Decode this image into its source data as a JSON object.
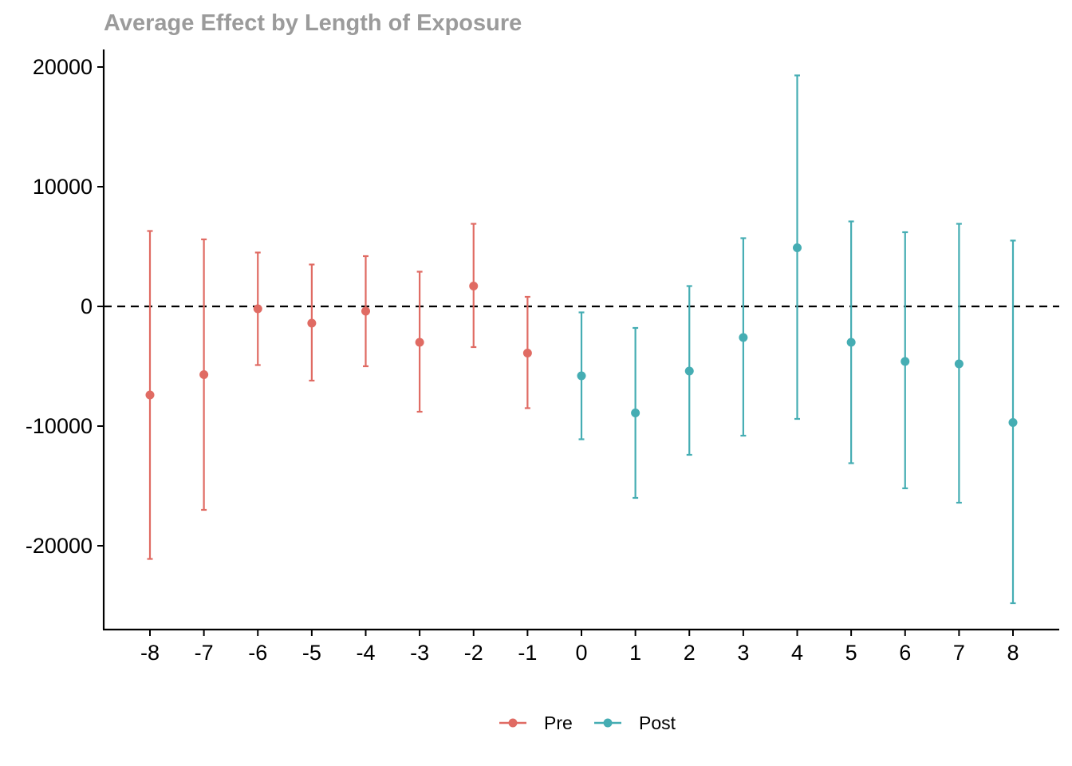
{
  "chart_data": {
    "type": "scatter",
    "title": "Average Effect by Length of Exposure",
    "xlabel": "",
    "ylabel": "",
    "x": [
      -8,
      -7,
      -6,
      -5,
      -4,
      -3,
      -2,
      -1,
      0,
      1,
      2,
      3,
      4,
      5,
      6,
      7,
      8
    ],
    "ylim": [
      -27000,
      21400
    ],
    "yticks": [
      -20000,
      -10000,
      0,
      10000,
      20000
    ],
    "reference_line": {
      "y": 0,
      "style": "dashed"
    },
    "grid": false,
    "legend_position": "bottom",
    "series": [
      {
        "name": "Pre",
        "color": "#E06B63",
        "points": [
          {
            "x": -8,
            "y": -7400,
            "lower": -21100,
            "upper": 6300
          },
          {
            "x": -7,
            "y": -5700,
            "lower": -17000,
            "upper": 5600
          },
          {
            "x": -6,
            "y": -200,
            "lower": -4900,
            "upper": 4500
          },
          {
            "x": -5,
            "y": -1400,
            "lower": -6200,
            "upper": 3500
          },
          {
            "x": -4,
            "y": -400,
            "lower": -5000,
            "upper": 4200
          },
          {
            "x": -3,
            "y": -3000,
            "lower": -8800,
            "upper": 2900
          },
          {
            "x": -2,
            "y": 1700,
            "lower": -3400,
            "upper": 6900
          },
          {
            "x": -1,
            "y": -3900,
            "lower": -8500,
            "upper": 800
          }
        ]
      },
      {
        "name": "Post",
        "color": "#45ADB3",
        "points": [
          {
            "x": 0,
            "y": -5800,
            "lower": -11100,
            "upper": -500
          },
          {
            "x": 1,
            "y": -8900,
            "lower": -16000,
            "upper": -1800
          },
          {
            "x": 2,
            "y": -5400,
            "lower": -12400,
            "upper": 1700
          },
          {
            "x": 3,
            "y": -2600,
            "lower": -10800,
            "upper": 5700
          },
          {
            "x": 4,
            "y": 4900,
            "lower": -9400,
            "upper": 19300
          },
          {
            "x": 5,
            "y": -3000,
            "lower": -13100,
            "upper": 7100
          },
          {
            "x": 6,
            "y": -4600,
            "lower": -15200,
            "upper": 6200
          },
          {
            "x": 7,
            "y": -4800,
            "lower": -16400,
            "upper": 6900
          },
          {
            "x": 8,
            "y": -9700,
            "lower": -24800,
            "upper": 5500
          }
        ]
      }
    ]
  },
  "style": {
    "title_color": "#9B9B9B",
    "axis_color": "#000000"
  }
}
